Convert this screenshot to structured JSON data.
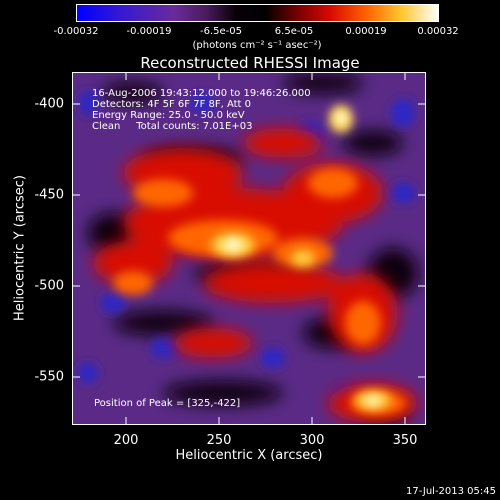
{
  "colorbar": {
    "ticks": [
      "-0.00032",
      "-0.00019",
      "-6.5e-05",
      "6.5e-05",
      "0.00019",
      "0.00032"
    ],
    "units": "(photons cm⁻² s⁻¹ asec⁻²)"
  },
  "image": {
    "title": "Reconstructed RHESSI Image",
    "annotations": {
      "time_range": "16-Aug-2006 19:43:12.000 to 19:46:26.000",
      "detectors": "Detectors: 4F 5F 6F 7F 8F, Att 0",
      "energy_range": "Energy Range: 25.0 - 50.0 keV",
      "algorithm": "Clean     Total counts: 7.01E+03",
      "peak": "Position of Peak = [325,-422]"
    },
    "x_axis": {
      "label": "Heliocentric X (arcsec)",
      "ticks": [
        "200",
        "250",
        "300",
        "350"
      ],
      "range": [
        170,
        362
      ]
    },
    "y_axis": {
      "label": "Heliocentric Y (arcsec)",
      "ticks": [
        "-400",
        "-450",
        "-500",
        "-550"
      ],
      "range": [
        -581,
        -387
      ]
    }
  },
  "footer": {
    "timestamp": "17-Jul-2013 05:45"
  }
}
